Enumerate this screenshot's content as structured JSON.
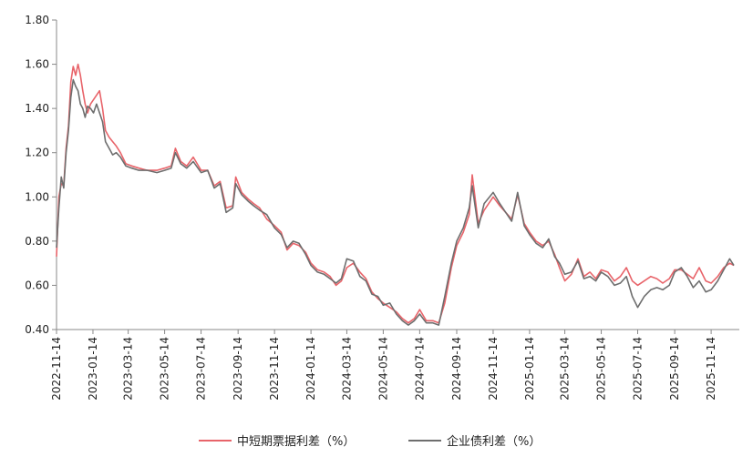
{
  "chart_data": {
    "type": "line",
    "title": "",
    "xlabel": "",
    "ylabel": "",
    "ylim": [
      0.4,
      1.8
    ],
    "y_ticks": [
      "0.40",
      "0.60",
      "0.80",
      "1.00",
      "1.20",
      "1.40",
      "1.60",
      "1.80"
    ],
    "x_ticks": [
      "2022-11-14",
      "2023-01-14",
      "2023-03-14",
      "2023-05-14",
      "2023-07-14",
      "2023-09-14",
      "2023-11-14",
      "2024-01-14",
      "2024-03-14",
      "2024-05-14",
      "2024-07-14",
      "2024-09-14",
      "2024-11-14",
      "2025-01-14",
      "2025-03-14",
      "2025-05-14",
      "2025-07-14",
      "2025-09-14",
      "2025-11-14"
    ],
    "xlim": [
      "2022-11-14",
      "2025-12-22"
    ],
    "grid": false,
    "legend_position": "bottom",
    "series": [
      {
        "name": "中短期票据利差（%）",
        "color": "#e8646a",
        "points": [
          [
            "2022-11-14",
            0.73
          ],
          [
            "2022-11-18",
            1.0
          ],
          [
            "2022-11-22",
            1.06
          ],
          [
            "2022-11-26",
            1.05
          ],
          [
            "2022-11-30",
            1.22
          ],
          [
            "2022-12-04",
            1.32
          ],
          [
            "2022-12-08",
            1.52
          ],
          [
            "2022-12-12",
            1.59
          ],
          [
            "2022-12-16",
            1.55
          ],
          [
            "2022-12-20",
            1.6
          ],
          [
            "2022-12-24",
            1.55
          ],
          [
            "2022-12-28",
            1.48
          ],
          [
            "2023-01-01",
            1.42
          ],
          [
            "2023-01-05",
            1.38
          ],
          [
            "2023-01-10",
            1.42
          ],
          [
            "2023-01-15",
            1.44
          ],
          [
            "2023-01-20",
            1.46
          ],
          [
            "2023-01-25",
            1.48
          ],
          [
            "2023-01-30",
            1.4
          ],
          [
            "2023-02-04",
            1.3
          ],
          [
            "2023-02-10",
            1.27
          ],
          [
            "2023-02-16",
            1.25
          ],
          [
            "2023-02-22",
            1.23
          ],
          [
            "2023-03-01",
            1.2
          ],
          [
            "2023-03-10",
            1.15
          ],
          [
            "2023-03-20",
            1.14
          ],
          [
            "2023-04-01",
            1.13
          ],
          [
            "2023-04-15",
            1.12
          ],
          [
            "2023-05-01",
            1.12
          ],
          [
            "2023-05-14",
            1.13
          ],
          [
            "2023-05-25",
            1.14
          ],
          [
            "2023-06-01",
            1.22
          ],
          [
            "2023-06-10",
            1.16
          ],
          [
            "2023-06-20",
            1.14
          ],
          [
            "2023-07-01",
            1.18
          ],
          [
            "2023-07-14",
            1.12
          ],
          [
            "2023-07-25",
            1.12
          ],
          [
            "2023-08-05",
            1.05
          ],
          [
            "2023-08-15",
            1.07
          ],
          [
            "2023-08-25",
            0.95
          ],
          [
            "2023-09-05",
            0.96
          ],
          [
            "2023-09-10",
            1.09
          ],
          [
            "2023-09-20",
            1.02
          ],
          [
            "2023-10-01",
            0.99
          ],
          [
            "2023-10-10",
            0.97
          ],
          [
            "2023-10-20",
            0.95
          ],
          [
            "2023-11-01",
            0.9
          ],
          [
            "2023-11-14",
            0.87
          ],
          [
            "2023-11-25",
            0.84
          ],
          [
            "2023-12-05",
            0.76
          ],
          [
            "2023-12-15",
            0.79
          ],
          [
            "2023-12-25",
            0.78
          ],
          [
            "2024-01-05",
            0.75
          ],
          [
            "2024-01-14",
            0.7
          ],
          [
            "2024-01-25",
            0.67
          ],
          [
            "2024-02-05",
            0.66
          ],
          [
            "2024-02-15",
            0.64
          ],
          [
            "2024-02-25",
            0.6
          ],
          [
            "2024-03-05",
            0.62
          ],
          [
            "2024-03-14",
            0.68
          ],
          [
            "2024-03-25",
            0.7
          ],
          [
            "2024-04-05",
            0.66
          ],
          [
            "2024-04-15",
            0.63
          ],
          [
            "2024-04-25",
            0.57
          ],
          [
            "2024-05-05",
            0.54
          ],
          [
            "2024-05-14",
            0.52
          ],
          [
            "2024-05-25",
            0.5
          ],
          [
            "2024-06-05",
            0.48
          ],
          [
            "2024-06-15",
            0.45
          ],
          [
            "2024-06-25",
            0.43
          ],
          [
            "2024-07-05",
            0.45
          ],
          [
            "2024-07-14",
            0.49
          ],
          [
            "2024-07-25",
            0.44
          ],
          [
            "2024-08-05",
            0.44
          ],
          [
            "2024-08-15",
            0.43
          ],
          [
            "2024-08-25",
            0.52
          ],
          [
            "2024-09-05",
            0.68
          ],
          [
            "2024-09-14",
            0.78
          ],
          [
            "2024-09-25",
            0.84
          ],
          [
            "2024-10-05",
            0.92
          ],
          [
            "2024-10-10",
            1.1
          ],
          [
            "2024-10-20",
            0.88
          ],
          [
            "2024-10-30",
            0.94
          ],
          [
            "2024-11-14",
            1.0
          ],
          [
            "2024-11-25",
            0.96
          ],
          [
            "2024-12-05",
            0.93
          ],
          [
            "2024-12-15",
            0.9
          ],
          [
            "2024-12-25",
            1.01
          ],
          [
            "2025-01-05",
            0.88
          ],
          [
            "2025-01-14",
            0.84
          ],
          [
            "2025-01-25",
            0.8
          ],
          [
            "2025-02-05",
            0.78
          ],
          [
            "2025-02-15",
            0.8
          ],
          [
            "2025-02-25",
            0.74
          ],
          [
            "2025-03-05",
            0.68
          ],
          [
            "2025-03-14",
            0.62
          ],
          [
            "2025-03-25",
            0.65
          ],
          [
            "2025-04-05",
            0.72
          ],
          [
            "2025-04-15",
            0.64
          ],
          [
            "2025-04-25",
            0.66
          ],
          [
            "2025-05-05",
            0.63
          ],
          [
            "2025-05-14",
            0.67
          ],
          [
            "2025-05-25",
            0.66
          ],
          [
            "2025-06-05",
            0.62
          ],
          [
            "2025-06-15",
            0.64
          ],
          [
            "2025-06-25",
            0.68
          ],
          [
            "2025-07-05",
            0.62
          ],
          [
            "2025-07-14",
            0.6
          ],
          [
            "2025-07-25",
            0.62
          ],
          [
            "2025-08-05",
            0.64
          ],
          [
            "2025-08-15",
            0.63
          ],
          [
            "2025-08-25",
            0.61
          ],
          [
            "2025-09-05",
            0.63
          ],
          [
            "2025-09-14",
            0.67
          ],
          [
            "2025-09-25",
            0.67
          ],
          [
            "2025-10-05",
            0.65
          ],
          [
            "2025-10-15",
            0.63
          ],
          [
            "2025-10-25",
            0.68
          ],
          [
            "2025-11-05",
            0.62
          ],
          [
            "2025-11-14",
            0.61
          ],
          [
            "2025-11-25",
            0.64
          ],
          [
            "2025-12-05",
            0.68
          ],
          [
            "2025-12-15",
            0.7
          ],
          [
            "2025-12-22",
            0.69
          ]
        ]
      },
      {
        "name": "企业债利差（%）",
        "color": "#6e6e6e",
        "points": [
          [
            "2022-11-14",
            0.77
          ],
          [
            "2022-11-18",
            0.95
          ],
          [
            "2022-11-22",
            1.09
          ],
          [
            "2022-11-26",
            1.04
          ],
          [
            "2022-11-30",
            1.2
          ],
          [
            "2022-12-04",
            1.3
          ],
          [
            "2022-12-08",
            1.45
          ],
          [
            "2022-12-12",
            1.53
          ],
          [
            "2022-12-16",
            1.5
          ],
          [
            "2022-12-20",
            1.48
          ],
          [
            "2022-12-24",
            1.42
          ],
          [
            "2022-12-28",
            1.4
          ],
          [
            "2023-01-01",
            1.36
          ],
          [
            "2023-01-05",
            1.41
          ],
          [
            "2023-01-10",
            1.4
          ],
          [
            "2023-01-15",
            1.38
          ],
          [
            "2023-01-20",
            1.42
          ],
          [
            "2023-01-25",
            1.38
          ],
          [
            "2023-01-30",
            1.34
          ],
          [
            "2023-02-04",
            1.25
          ],
          [
            "2023-02-10",
            1.22
          ],
          [
            "2023-02-16",
            1.19
          ],
          [
            "2023-02-22",
            1.2
          ],
          [
            "2023-03-01",
            1.18
          ],
          [
            "2023-03-10",
            1.14
          ],
          [
            "2023-03-20",
            1.13
          ],
          [
            "2023-04-01",
            1.12
          ],
          [
            "2023-04-15",
            1.12
          ],
          [
            "2023-05-01",
            1.11
          ],
          [
            "2023-05-14",
            1.12
          ],
          [
            "2023-05-25",
            1.13
          ],
          [
            "2023-06-01",
            1.2
          ],
          [
            "2023-06-10",
            1.15
          ],
          [
            "2023-06-20",
            1.13
          ],
          [
            "2023-07-01",
            1.16
          ],
          [
            "2023-07-14",
            1.11
          ],
          [
            "2023-07-25",
            1.12
          ],
          [
            "2023-08-05",
            1.04
          ],
          [
            "2023-08-15",
            1.06
          ],
          [
            "2023-08-25",
            0.93
          ],
          [
            "2023-09-05",
            0.95
          ],
          [
            "2023-09-10",
            1.06
          ],
          [
            "2023-09-20",
            1.01
          ],
          [
            "2023-10-01",
            0.98
          ],
          [
            "2023-10-10",
            0.96
          ],
          [
            "2023-10-20",
            0.94
          ],
          [
            "2023-11-01",
            0.92
          ],
          [
            "2023-11-14",
            0.86
          ],
          [
            "2023-11-25",
            0.83
          ],
          [
            "2023-12-05",
            0.77
          ],
          [
            "2023-12-15",
            0.8
          ],
          [
            "2023-12-25",
            0.79
          ],
          [
            "2024-01-05",
            0.74
          ],
          [
            "2024-01-14",
            0.69
          ],
          [
            "2024-01-25",
            0.66
          ],
          [
            "2024-02-05",
            0.65
          ],
          [
            "2024-02-15",
            0.63
          ],
          [
            "2024-02-25",
            0.61
          ],
          [
            "2024-03-05",
            0.63
          ],
          [
            "2024-03-14",
            0.72
          ],
          [
            "2024-03-25",
            0.71
          ],
          [
            "2024-04-05",
            0.64
          ],
          [
            "2024-04-15",
            0.62
          ],
          [
            "2024-04-25",
            0.56
          ],
          [
            "2024-05-05",
            0.55
          ],
          [
            "2024-05-14",
            0.51
          ],
          [
            "2024-05-25",
            0.52
          ],
          [
            "2024-06-05",
            0.47
          ],
          [
            "2024-06-15",
            0.44
          ],
          [
            "2024-06-25",
            0.42
          ],
          [
            "2024-07-05",
            0.44
          ],
          [
            "2024-07-14",
            0.47
          ],
          [
            "2024-07-25",
            0.43
          ],
          [
            "2024-08-05",
            0.43
          ],
          [
            "2024-08-15",
            0.42
          ],
          [
            "2024-08-25",
            0.55
          ],
          [
            "2024-09-05",
            0.7
          ],
          [
            "2024-09-14",
            0.8
          ],
          [
            "2024-09-25",
            0.86
          ],
          [
            "2024-10-05",
            0.95
          ],
          [
            "2024-10-10",
            1.05
          ],
          [
            "2024-10-20",
            0.86
          ],
          [
            "2024-10-30",
            0.97
          ],
          [
            "2024-11-14",
            1.02
          ],
          [
            "2024-11-25",
            0.97
          ],
          [
            "2024-12-05",
            0.93
          ],
          [
            "2024-12-15",
            0.89
          ],
          [
            "2024-12-25",
            1.02
          ],
          [
            "2025-01-05",
            0.87
          ],
          [
            "2025-01-14",
            0.83
          ],
          [
            "2025-01-25",
            0.79
          ],
          [
            "2025-02-05",
            0.77
          ],
          [
            "2025-02-15",
            0.81
          ],
          [
            "2025-02-25",
            0.73
          ],
          [
            "2025-03-05",
            0.7
          ],
          [
            "2025-03-14",
            0.65
          ],
          [
            "2025-03-25",
            0.66
          ],
          [
            "2025-04-05",
            0.71
          ],
          [
            "2025-04-15",
            0.63
          ],
          [
            "2025-04-25",
            0.64
          ],
          [
            "2025-05-05",
            0.62
          ],
          [
            "2025-05-14",
            0.66
          ],
          [
            "2025-05-25",
            0.64
          ],
          [
            "2025-06-05",
            0.6
          ],
          [
            "2025-06-15",
            0.61
          ],
          [
            "2025-06-25",
            0.64
          ],
          [
            "2025-07-05",
            0.55
          ],
          [
            "2025-07-14",
            0.5
          ],
          [
            "2025-07-25",
            0.55
          ],
          [
            "2025-08-05",
            0.58
          ],
          [
            "2025-08-15",
            0.59
          ],
          [
            "2025-08-25",
            0.58
          ],
          [
            "2025-09-05",
            0.6
          ],
          [
            "2025-09-14",
            0.66
          ],
          [
            "2025-09-25",
            0.68
          ],
          [
            "2025-10-05",
            0.64
          ],
          [
            "2025-10-15",
            0.59
          ],
          [
            "2025-10-25",
            0.62
          ],
          [
            "2025-11-05",
            0.57
          ],
          [
            "2025-11-14",
            0.58
          ],
          [
            "2025-11-25",
            0.62
          ],
          [
            "2025-12-05",
            0.67
          ],
          [
            "2025-12-15",
            0.72
          ],
          [
            "2025-12-22",
            0.69
          ]
        ]
      }
    ]
  }
}
